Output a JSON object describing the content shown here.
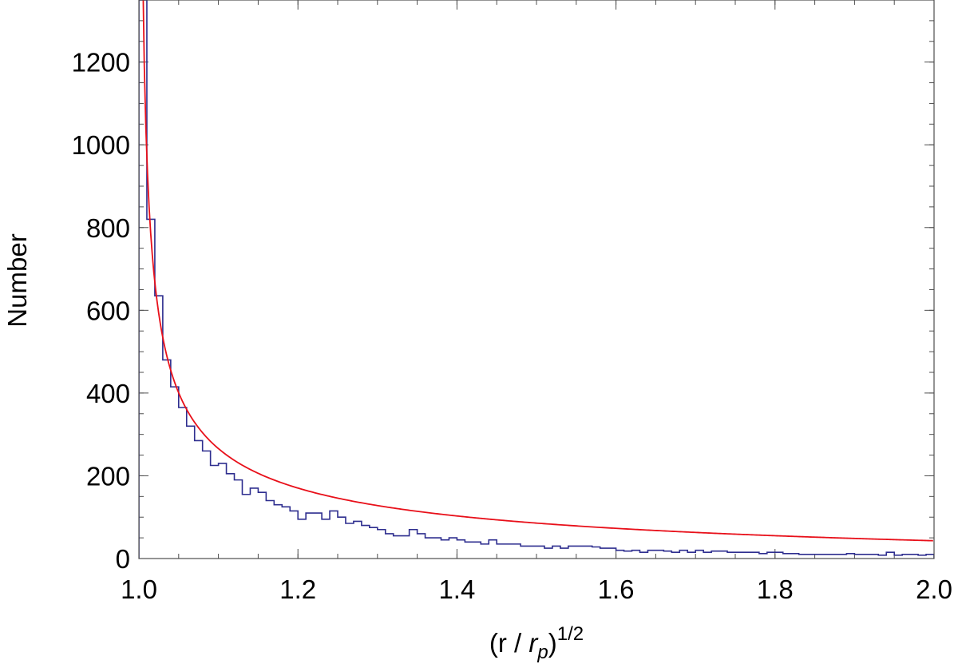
{
  "chart_data": {
    "type": "histogram",
    "xlabel": {
      "base": "(r / ",
      "italic": "r",
      "sub": "p",
      "close": ")",
      "sup": "1/2"
    },
    "ylabel": "Number",
    "xlim": [
      1.0,
      2.0
    ],
    "ylim": [
      0,
      1350
    ],
    "x_ticks": [
      "1.0",
      "1.2",
      "1.4",
      "1.6",
      "1.8",
      "2.0"
    ],
    "y_ticks": [
      "0",
      "200",
      "400",
      "600",
      "800",
      "1000",
      "1200"
    ],
    "grid": false,
    "bin_width": 0.01,
    "series": [
      {
        "kind": "histogram",
        "color": "#2e2e8f",
        "bin_start": 1.0,
        "values": [
          1350,
          820,
          635,
          480,
          415,
          365,
          320,
          285,
          260,
          225,
          230,
          205,
          190,
          155,
          170,
          160,
          140,
          130,
          125,
          115,
          95,
          110,
          110,
          95,
          115,
          100,
          85,
          90,
          80,
          75,
          70,
          60,
          55,
          55,
          70,
          60,
          50,
          50,
          45,
          50,
          45,
          40,
          40,
          35,
          45,
          35,
          35,
          35,
          30,
          30,
          30,
          25,
          30,
          25,
          30,
          30,
          30,
          28,
          25,
          25,
          20,
          18,
          20,
          15,
          20,
          20,
          18,
          15,
          20,
          15,
          20,
          15,
          18,
          18,
          15,
          15,
          15,
          15,
          12,
          15,
          15,
          12,
          12,
          10,
          10,
          10,
          10,
          10,
          10,
          12,
          10,
          10,
          10,
          8,
          15,
          8,
          10,
          10,
          8,
          10
        ]
      },
      {
        "kind": "fit",
        "color": "#e8101a",
        "model": "A / (x - 1)^0.5 + B",
        "A": 103,
        "B": -60
      }
    ]
  }
}
